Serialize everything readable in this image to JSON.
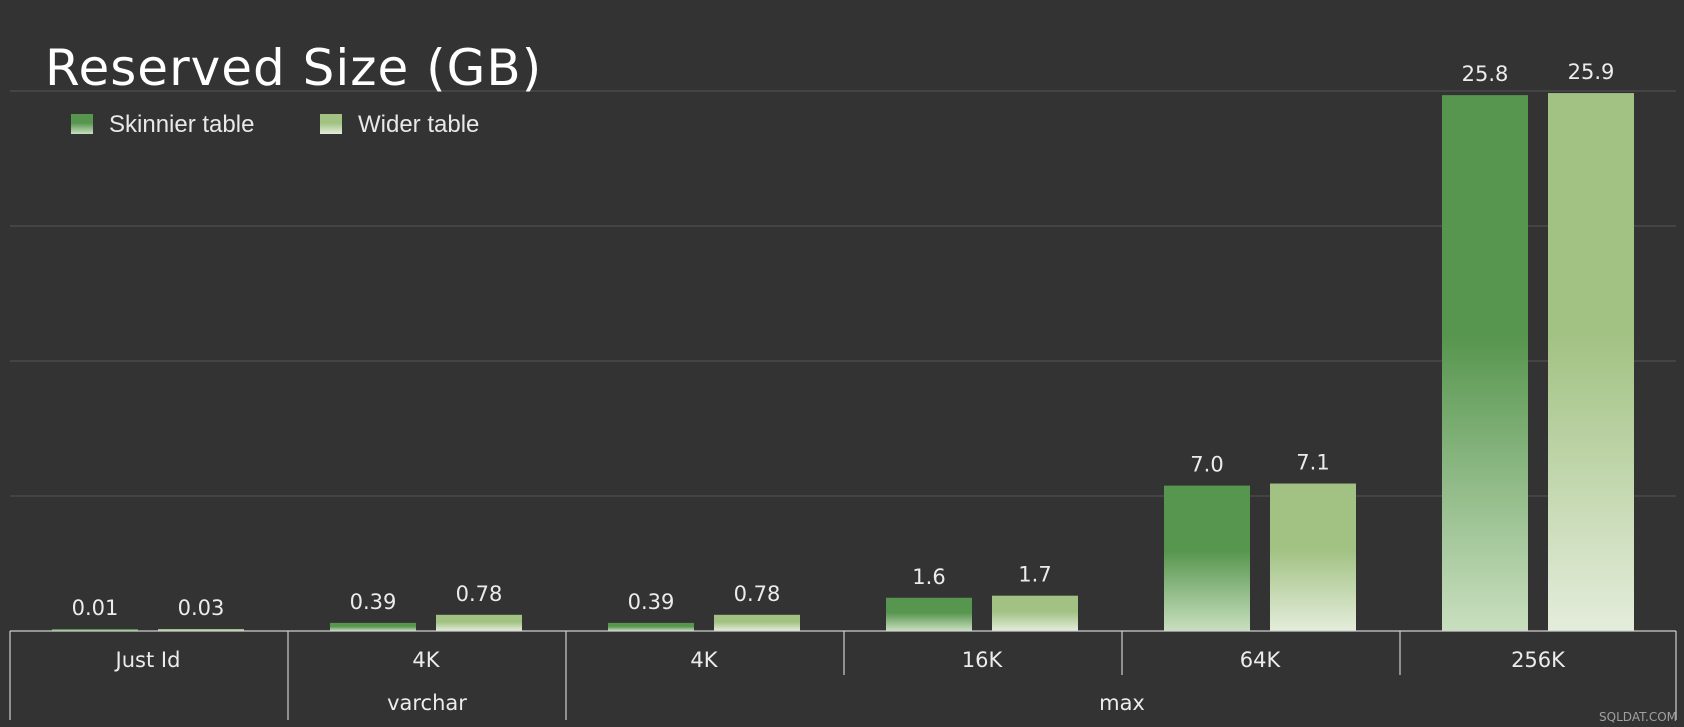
{
  "chart_data": {
    "type": "bar",
    "title": "Reserved Size (GB)",
    "categories": [
      "Just Id",
      "4K",
      "4K",
      "16K",
      "64K",
      "256K"
    ],
    "category_groups": [
      {
        "label": "",
        "categories": [
          "Just Id"
        ]
      },
      {
        "label": "varchar",
        "categories": [
          "4K"
        ]
      },
      {
        "label": "max",
        "categories": [
          "4K",
          "16K",
          "64K",
          "256K"
        ]
      }
    ],
    "series": [
      {
        "name": "Skinnier table",
        "values": [
          0.01,
          0.39,
          0.39,
          1.6,
          7.0,
          25.8
        ],
        "labels": [
          "0.01",
          "0.39",
          "0.39",
          "1.6",
          "7.0",
          "25.8"
        ],
        "color_top": "#57964f",
        "color_bottom": "#c9dfbf"
      },
      {
        "name": "Wider table",
        "values": [
          0.03,
          0.78,
          0.78,
          1.7,
          7.1,
          25.9
        ],
        "labels": [
          "0.03",
          "0.78",
          "0.78",
          "1.7",
          "7.1",
          "25.9"
        ],
        "color_top": "#a2c283",
        "color_bottom": "#e4eddb"
      }
    ],
    "ylim": [
      0,
      26
    ],
    "grid": true,
    "legend_position": "top-left",
    "xlabel": "",
    "ylabel": ""
  },
  "colors": {
    "background": "#333333",
    "gridline": "#4a4a4a",
    "axis": "#cfcfcf",
    "text": "#ececec"
  },
  "watermark": "SQLDAT.COM"
}
